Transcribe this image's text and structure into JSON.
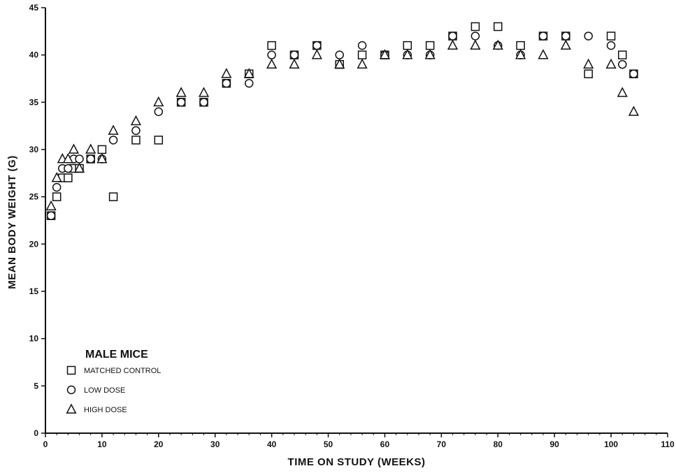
{
  "chart_data": {
    "type": "scatter",
    "xlabel": "TIME ON STUDY (WEEKS)",
    "ylabel": "MEAN BODY WEIGHT (G)",
    "xlim": [
      0,
      110
    ],
    "ylim": [
      0,
      45
    ],
    "xticks": [
      "0",
      "10",
      "20",
      "30",
      "40",
      "50",
      "60",
      "70",
      "80",
      "90",
      "100",
      "110"
    ],
    "yticks": [
      "0",
      "5",
      "10",
      "15",
      "20",
      "25",
      "30",
      "35",
      "40",
      "45"
    ],
    "grid": false,
    "legend": {
      "title": "MALE MICE",
      "position": "bottom-left"
    },
    "series": [
      {
        "name": "MATCHED CONTROL",
        "marker": "square",
        "x": [
          1,
          2,
          3,
          4,
          5,
          6,
          8,
          10,
          12,
          16,
          20,
          24,
          28,
          32,
          36,
          40,
          44,
          48,
          52,
          56,
          60,
          64,
          68,
          72,
          76,
          80,
          84,
          88,
          92,
          96,
          100,
          102,
          104
        ],
        "y": [
          23,
          25,
          27,
          27,
          28,
          28,
          29,
          30,
          25,
          31,
          31,
          35,
          35,
          37,
          38,
          41,
          40,
          41,
          39,
          40,
          40,
          41,
          41,
          42,
          43,
          43,
          41,
          42,
          42,
          38,
          42,
          40,
          38
        ]
      },
      {
        "name": "LOW DOSE",
        "marker": "circle",
        "x": [
          1,
          2,
          3,
          4,
          5,
          6,
          8,
          10,
          12,
          16,
          20,
          24,
          28,
          32,
          36,
          40,
          44,
          48,
          52,
          56,
          60,
          64,
          68,
          72,
          76,
          80,
          84,
          88,
          92,
          96,
          100,
          102,
          104
        ],
        "y": [
          23,
          26,
          28,
          28,
          29,
          29,
          29,
          29,
          31,
          32,
          34,
          35,
          35,
          37,
          37,
          40,
          40,
          41,
          40,
          41,
          40,
          40,
          40,
          42,
          42,
          41,
          40,
          42,
          42,
          42,
          41,
          39,
          38
        ]
      },
      {
        "name": "HIGH DOSE",
        "marker": "triangle",
        "x": [
          1,
          2,
          3,
          4,
          5,
          6,
          8,
          10,
          12,
          16,
          20,
          24,
          28,
          32,
          36,
          40,
          44,
          48,
          52,
          56,
          60,
          64,
          68,
          72,
          76,
          80,
          84,
          88,
          92,
          96,
          100,
          102,
          104
        ],
        "y": [
          24,
          27,
          29,
          29,
          30,
          28,
          30,
          29,
          32,
          33,
          35,
          36,
          36,
          38,
          38,
          39,
          39,
          40,
          39,
          39,
          40,
          40,
          40,
          41,
          41,
          41,
          40,
          40,
          41,
          39,
          39,
          36,
          34
        ]
      }
    ]
  }
}
